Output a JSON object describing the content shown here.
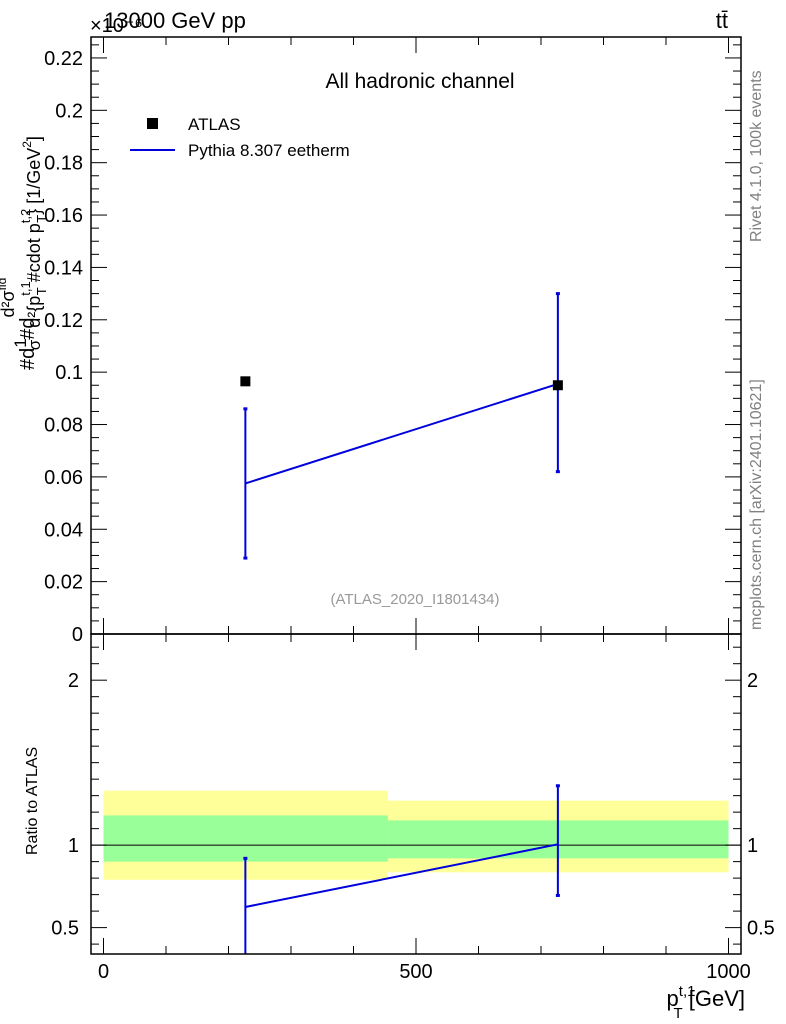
{
  "header": {
    "left": "13000 GeV pp",
    "right": "tt̄",
    "exponent": "×10⁻⁶"
  },
  "side_labels": {
    "rivet": "Rivet 4.1.0,  100k events",
    "mcplots": "mcplots.cern.ch [arXiv:2401.10621]"
  },
  "chart_data": [
    {
      "type": "scatter",
      "panel": "main",
      "title": "All hadronic channel",
      "watermark": "(ATLAS_2020_I1801434)",
      "xlabel": "p_T^{t,1} [GeV]",
      "ylabel": "#d1/σ #d d²σ^{fid} / d²{p_T^{t,1} #cdot p_T^{t,2}} [1/GeV²]",
      "ylabel_parts": [
        "#d",
        "1",
        "σ",
        "#d",
        "d²σ",
        "fid",
        "d²{p",
        "t,1",
        "T",
        " #cdot p",
        "t,2",
        "T",
        "} [1/GeV",
        "2",
        "]"
      ],
      "xlim": [
        -20,
        1020
      ],
      "ylim": [
        0,
        0.228
      ],
      "y_ticks": [
        0,
        0.02,
        0.04,
        0.06,
        0.08,
        0.1,
        0.12,
        0.14,
        0.16,
        0.18,
        0.2,
        0.22
      ],
      "y_tick_labels": [
        "0",
        "0.02",
        "0.04",
        "0.06",
        "0.08",
        "0.1",
        "0.12",
        "0.14",
        "0.16",
        "0.18",
        "0.2",
        "0.22"
      ],
      "legend": {
        "position": "top-left",
        "entries": [
          "ATLAS",
          "Pythia 8.307 eetherm"
        ]
      },
      "series": [
        {
          "name": "ATLAS",
          "style": "marker",
          "color": "#000000",
          "x": [
            227,
            727
          ],
          "y": [
            0.0965,
            0.095
          ]
        },
        {
          "name": "Pythia 8.307 eetherm",
          "style": "line",
          "color": "#0000dd",
          "x": [
            227,
            727
          ],
          "y": [
            0.0575,
            0.0955
          ],
          "err_low": [
            0.0285,
            0.0335
          ],
          "err_high": [
            0.0285,
            0.0345
          ]
        }
      ]
    },
    {
      "type": "line",
      "panel": "ratio",
      "ylabel": "Ratio to ATLAS",
      "xlabel": "p_T^{t,1} [GeV]",
      "xlim": [
        -20,
        1020
      ],
      "ylim": [
        0.34,
        2.28
      ],
      "x_ticks": [
        0,
        500,
        1000
      ],
      "x_tick_labels": [
        "0",
        "500",
        "1000"
      ],
      "y_ticks": [
        0.5,
        1,
        2
      ],
      "y_tick_labels": [
        "0.5",
        "1",
        "2"
      ],
      "reference": 1,
      "bands": [
        {
          "name": "total uncertainty",
          "color": "#ffff99",
          "bins": [
            [
              0,
              455,
              0.79,
              1.33
            ],
            [
              455,
              1000,
              0.835,
              1.27
            ]
          ]
        },
        {
          "name": "stat uncertainty",
          "color": "#99ff99",
          "bins": [
            [
              0,
              455,
              0.9,
              1.18
            ],
            [
              455,
              1000,
              0.92,
              1.15
            ]
          ]
        }
      ],
      "series": [
        {
          "name": "Pythia 8.307 eetherm",
          "color": "#0000dd",
          "x": [
            227,
            727
          ],
          "y": [
            0.625,
            1.005
          ],
          "err_low": [
            0.3,
            0.31
          ],
          "err_high": [
            0.295,
            0.355
          ]
        }
      ]
    }
  ]
}
